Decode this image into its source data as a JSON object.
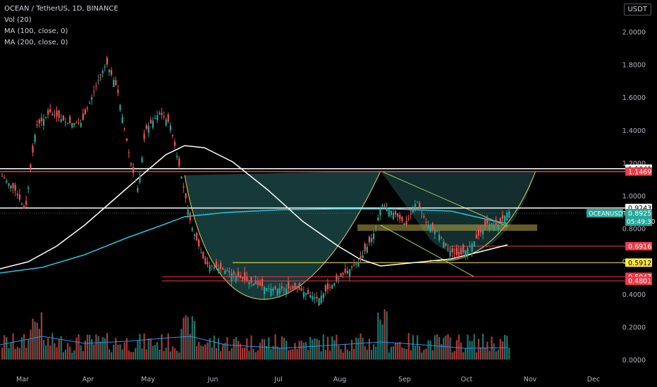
{
  "header": {
    "title": "OCEAN / TetherUS, 1D, BINANCE",
    "indicators": [
      "Vol (20)",
      "MA (100, close, 0)",
      "MA (200, close, 0)"
    ],
    "currency_button": "USDT"
  },
  "price_tag": {
    "symbol": "OCEANUSDT",
    "price": "0.8925",
    "countdown": "05:49:30",
    "color": "#26a69a"
  },
  "chart_data": {
    "type": "candlestick",
    "title": "OCEAN / TetherUS, 1D, BINANCE",
    "y_ticks": [
      "2.0000",
      "1.8000",
      "1.6000",
      "1.4000",
      "1.2000",
      "1.0000",
      "0.8000",
      "0.6000",
      "0.4000",
      "0.2000",
      "0.0000"
    ],
    "x_ticks": [
      "Mar",
      "Apr",
      "May",
      "Jun",
      "Jul",
      "Aug",
      "Sep",
      "Oct",
      "Nov",
      "Dec"
    ],
    "horizontal_levels": [
      {
        "label": "1.1641",
        "value": 1.1641,
        "color": "#ffffff"
      },
      {
        "label": "1.1469",
        "value": 1.1469,
        "color": "#f23645"
      },
      {
        "label": "0.9243",
        "value": 0.9243,
        "color": "#ffffff"
      },
      {
        "label": "0.6916",
        "value": 0.6916,
        "color": "#f23645"
      },
      {
        "label": "0.5912",
        "value": 0.5912,
        "color": "#ffeb3b"
      },
      {
        "label": "0.5047",
        "value": 0.5047,
        "color": "#f23645"
      },
      {
        "label": "0.4801",
        "value": 0.4801,
        "color": "#f23645"
      }
    ],
    "up_color": "#26a69a",
    "down_color": "#ef5350",
    "ma100_color": "#26c6da",
    "ma200_color": "#ffffff",
    "pattern_color": "#1e4d4d",
    "pattern_line_color": "#e6d34a"
  }
}
